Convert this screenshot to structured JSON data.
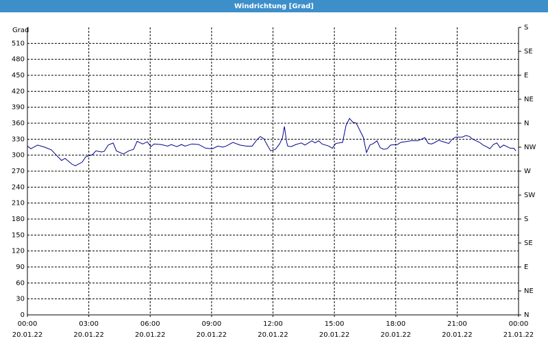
{
  "chart_data": {
    "type": "line",
    "title": "Windrichtung [Grad]",
    "ylabel": "Grad",
    "x": [
      0,
      0.17,
      0.5,
      0.84,
      1.17,
      1.34,
      1.67,
      1.84,
      2.18,
      2.34,
      2.68,
      2.85,
      3.18,
      3.35,
      3.62,
      3.75,
      3.95,
      4.19,
      4.35,
      4.69,
      4.95,
      5.19,
      5.36,
      5.63,
      5.86,
      6.03,
      6.19,
      6.53,
      6.86,
      7.03,
      7.3,
      7.53,
      7.7,
      8.04,
      8.37,
      8.71,
      9.04,
      9.31,
      9.54,
      9.71,
      10.04,
      10.38,
      10.71,
      10.98,
      11.22,
      11.38,
      11.55,
      11.72,
      11.89,
      12.12,
      12.32,
      12.46,
      12.56,
      12.66,
      12.72,
      12.89,
      13.12,
      13.39,
      13.56,
      13.73,
      13.9,
      14.06,
      14.23,
      14.4,
      14.73,
      14.9,
      15.07,
      15.4,
      15.57,
      15.74,
      15.9,
      16.07,
      16.41,
      16.57,
      16.74,
      16.91,
      17.08,
      17.24,
      17.41,
      17.58,
      17.75,
      18.08,
      18.25,
      18.75,
      19.08,
      19.42,
      19.59,
      19.75,
      19.92,
      20.09,
      20.42,
      20.59,
      20.76,
      20.93,
      21.26,
      21.43,
      21.6,
      21.76,
      22.1,
      22.27,
      22.43,
      22.6,
      22.77,
      22.94,
      23.1,
      23.27,
      23.44,
      23.6,
      23.77,
      23.87
    ],
    "series": [
      {
        "name": "Windrichtung",
        "color": "#00008b",
        "values": [
          317,
          312,
          319,
          315,
          310,
          303,
          290,
          294,
          283,
          280,
          287,
          297,
          301,
          308,
          306,
          307,
          319,
          323,
          308,
          302,
          308,
          311,
          326,
          321,
          325,
          316,
          321,
          320,
          317,
          320,
          316,
          320,
          317,
          321,
          320,
          313,
          312,
          317,
          315,
          317,
          324,
          319,
          317,
          317,
          329,
          335,
          331,
          319,
          308,
          311,
          321,
          332,
          354,
          326,
          317,
          316,
          320,
          323,
          319,
          323,
          327,
          323,
          327,
          321,
          317,
          313,
          322,
          324,
          356,
          369,
          362,
          360,
          334,
          305,
          319,
          322,
          327,
          314,
          311,
          312,
          319,
          320,
          324,
          327,
          327,
          333,
          322,
          321,
          324,
          328,
          324,
          322,
          330,
          334,
          334,
          337,
          335,
          330,
          324,
          319,
          316,
          312,
          320,
          323,
          314,
          319,
          316,
          313,
          313,
          308
        ]
      }
    ],
    "xlim": [
      0,
      24
    ],
    "xticks": [
      {
        "value": 0,
        "label": "00:00"
      },
      {
        "value": 3,
        "label": "03:00"
      },
      {
        "value": 6,
        "label": "06:00"
      },
      {
        "value": 9,
        "label": "09:00"
      },
      {
        "value": 12,
        "label": "12:00"
      },
      {
        "value": 15,
        "label": "15:00"
      },
      {
        "value": 18,
        "label": "18:00"
      },
      {
        "value": 21,
        "label": "21:00"
      },
      {
        "value": 24,
        "label": "00:00"
      }
    ],
    "xtick_dates": [
      "20.01.22",
      "20.01.22",
      "20.01.22",
      "20.01.22",
      "20.01.22",
      "20.01.22",
      "20.01.22",
      "20.01.22",
      "21.01.22"
    ],
    "ylim": [
      0,
      540
    ],
    "yticks": [
      0,
      30,
      60,
      90,
      120,
      150,
      180,
      210,
      240,
      270,
      300,
      330,
      360,
      390,
      420,
      450,
      480,
      510
    ],
    "y2lim": [
      0,
      540
    ],
    "y2ticks": [
      {
        "value": 0,
        "label": "N"
      },
      {
        "value": 45,
        "label": "NE"
      },
      {
        "value": 90,
        "label": "E"
      },
      {
        "value": 135,
        "label": "SE"
      },
      {
        "value": 180,
        "label": "S"
      },
      {
        "value": 225,
        "label": "SW"
      },
      {
        "value": 270,
        "label": "W"
      },
      {
        "value": 315,
        "label": "NW"
      },
      {
        "value": 360,
        "label": "N"
      },
      {
        "value": 405,
        "label": "NE"
      },
      {
        "value": 450,
        "label": "E"
      },
      {
        "value": 495,
        "label": "SE"
      },
      {
        "value": 540,
        "label": "S"
      }
    ],
    "grid": true
  }
}
